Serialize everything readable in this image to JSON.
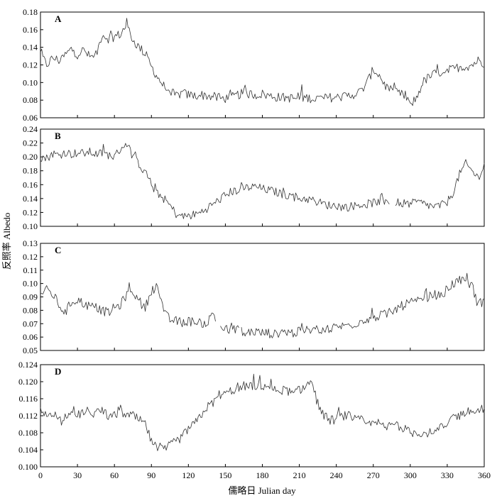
{
  "figure": {
    "ylabel": "反照率 Albedo",
    "xlabel": "儒略日 Julian day"
  },
  "chart_data": [
    {
      "type": "line",
      "label": "A",
      "xlim": [
        0,
        360
      ],
      "ylim": [
        0.06,
        0.18
      ],
      "yticks": [
        "0.06",
        "0.08",
        "0.10",
        "0.12",
        "0.14",
        "0.16",
        "0.18"
      ],
      "x_range": [
        0,
        360
      ],
      "keypoints": [
        [
          0,
          0.133
        ],
        [
          5,
          0.12
        ],
        [
          10,
          0.128
        ],
        [
          15,
          0.125
        ],
        [
          20,
          0.131
        ],
        [
          25,
          0.138
        ],
        [
          30,
          0.132
        ],
        [
          35,
          0.137
        ],
        [
          40,
          0.129
        ],
        [
          45,
          0.13
        ],
        [
          50,
          0.155
        ],
        [
          55,
          0.15
        ],
        [
          60,
          0.152
        ],
        [
          65,
          0.155
        ],
        [
          70,
          0.166
        ],
        [
          75,
          0.148
        ],
        [
          80,
          0.14
        ],
        [
          85,
          0.133
        ],
        [
          90,
          0.118
        ],
        [
          95,
          0.106
        ],
        [
          100,
          0.096
        ],
        [
          105,
          0.09
        ],
        [
          110,
          0.085
        ],
        [
          115,
          0.088
        ],
        [
          120,
          0.086
        ],
        [
          125,
          0.085
        ],
        [
          130,
          0.086
        ],
        [
          135,
          0.085
        ],
        [
          140,
          0.084
        ],
        [
          145,
          0.082
        ],
        [
          150,
          0.082
        ],
        [
          155,
          0.083
        ],
        [
          160,
          0.086
        ],
        [
          165,
          0.088
        ],
        [
          170,
          0.087
        ],
        [
          175,
          0.086
        ],
        [
          180,
          0.087
        ],
        [
          185,
          0.085
        ],
        [
          190,
          0.084
        ],
        [
          195,
          0.083
        ],
        [
          200,
          0.083
        ],
        [
          205,
          0.082
        ],
        [
          210,
          0.082
        ],
        [
          215,
          0.083
        ],
        [
          220,
          0.082
        ],
        [
          225,
          0.082
        ],
        [
          230,
          0.082
        ],
        [
          235,
          0.083
        ],
        [
          240,
          0.083
        ],
        [
          245,
          0.084
        ],
        [
          250,
          0.085
        ],
        [
          255,
          0.087
        ],
        [
          260,
          0.09
        ],
        [
          265,
          0.1
        ],
        [
          270,
          0.115
        ],
        [
          275,
          0.108
        ],
        [
          280,
          0.096
        ],
        [
          285,
          0.09
        ],
        [
          290,
          0.088
        ],
        [
          295,
          0.085
        ],
        [
          300,
          0.075
        ],
        [
          305,
          0.082
        ],
        [
          310,
          0.1
        ],
        [
          315,
          0.106
        ],
        [
          320,
          0.11
        ],
        [
          325,
          0.112
        ],
        [
          330,
          0.114
        ],
        [
          335,
          0.115
        ],
        [
          340,
          0.118
        ],
        [
          345,
          0.118
        ],
        [
          350,
          0.12
        ],
        [
          355,
          0.125
        ],
        [
          360,
          0.122
        ]
      ]
    },
    {
      "type": "line",
      "label": "B",
      "xlim": [
        0,
        360
      ],
      "ylim": [
        0.1,
        0.24
      ],
      "yticks": [
        "0.10",
        "0.12",
        "0.14",
        "0.16",
        "0.18",
        "0.20",
        "0.22",
        "0.24"
      ],
      "x_range": [
        0,
        360
      ],
      "keypoints": [
        [
          0,
          0.2
        ],
        [
          5,
          0.198
        ],
        [
          10,
          0.205
        ],
        [
          15,
          0.202
        ],
        [
          20,
          0.207
        ],
        [
          25,
          0.204
        ],
        [
          30,
          0.206
        ],
        [
          35,
          0.205
        ],
        [
          40,
          0.207
        ],
        [
          45,
          0.204
        ],
        [
          50,
          0.205
        ],
        [
          55,
          0.203
        ],
        [
          60,
          0.2
        ],
        [
          65,
          0.212
        ],
        [
          70,
          0.22
        ],
        [
          75,
          0.2
        ],
        [
          80,
          0.19
        ],
        [
          85,
          0.178
        ],
        [
          90,
          0.16
        ],
        [
          95,
          0.148
        ],
        [
          100,
          0.14
        ],
        [
          105,
          0.13
        ],
        [
          110,
          0.118
        ],
        [
          115,
          0.114
        ],
        [
          120,
          0.115
        ],
        [
          125,
          0.117
        ],
        [
          130,
          0.12
        ],
        [
          135,
          0.126
        ],
        [
          140,
          0.132
        ],
        [
          145,
          0.138
        ],
        [
          150,
          0.145
        ],
        [
          155,
          0.15
        ],
        [
          160,
          0.152
        ],
        [
          165,
          0.155
        ],
        [
          170,
          0.156
        ],
        [
          175,
          0.157
        ],
        [
          180,
          0.154
        ],
        [
          185,
          0.152
        ],
        [
          190,
          0.15
        ],
        [
          195,
          0.147
        ],
        [
          200,
          0.145
        ],
        [
          205,
          0.143
        ],
        [
          210,
          0.14
        ],
        [
          215,
          0.14
        ],
        [
          220,
          0.138
        ],
        [
          225,
          0.135
        ],
        [
          230,
          0.132
        ],
        [
          235,
          0.13
        ],
        [
          240,
          0.13
        ],
        [
          245,
          0.128
        ],
        [
          250,
          0.128
        ],
        [
          255,
          0.13
        ],
        [
          260,
          0.131
        ],
        [
          265,
          0.132
        ],
        [
          270,
          0.134
        ],
        [
          275,
          0.135
        ],
        [
          280,
          0.138
        ],
        [
          285,
          0.136
        ],
        [
          290,
          0.134
        ],
        [
          295,
          0.133
        ],
        [
          300,
          0.132
        ],
        [
          305,
          0.135
        ],
        [
          310,
          0.133
        ],
        [
          315,
          0.13
        ],
        [
          320,
          0.128
        ],
        [
          325,
          0.13
        ],
        [
          330,
          0.135
        ],
        [
          335,
          0.15
        ],
        [
          340,
          0.175
        ],
        [
          345,
          0.19
        ],
        [
          350,
          0.18
        ],
        [
          355,
          0.17
        ],
        [
          360,
          0.188
        ]
      ]
    },
    {
      "type": "line",
      "label": "C",
      "xlim": [
        0,
        360
      ],
      "ylim": [
        0.05,
        0.13
      ],
      "yticks": [
        "0.05",
        "0.06",
        "0.07",
        "0.08",
        "0.09",
        "0.10",
        "0.11",
        "0.12",
        "0.13"
      ],
      "x_range": [
        0,
        360
      ],
      "keypoints": [
        [
          0,
          0.093
        ],
        [
          5,
          0.095
        ],
        [
          10,
          0.092
        ],
        [
          15,
          0.084
        ],
        [
          20,
          0.078
        ],
        [
          25,
          0.086
        ],
        [
          30,
          0.088
        ],
        [
          35,
          0.085
        ],
        [
          40,
          0.083
        ],
        [
          45,
          0.082
        ],
        [
          50,
          0.08
        ],
        [
          55,
          0.078
        ],
        [
          60,
          0.082
        ],
        [
          65,
          0.084
        ],
        [
          70,
          0.092
        ],
        [
          75,
          0.095
        ],
        [
          80,
          0.085
        ],
        [
          85,
          0.082
        ],
        [
          90,
          0.095
        ],
        [
          95,
          0.098
        ],
        [
          100,
          0.078
        ],
        [
          105,
          0.073
        ],
        [
          110,
          0.072
        ],
        [
          115,
          0.071
        ],
        [
          120,
          0.072
        ],
        [
          125,
          0.071
        ],
        [
          130,
          0.071
        ],
        [
          135,
          0.07
        ],
        [
          140,
          0.078
        ],
        [
          145,
          0.068
        ],
        [
          150,
          0.066
        ],
        [
          155,
          0.064
        ],
        [
          160,
          0.068
        ],
        [
          165,
          0.062
        ],
        [
          170,
          0.064
        ],
        [
          175,
          0.064
        ],
        [
          180,
          0.063
        ],
        [
          185,
          0.063
        ],
        [
          190,
          0.062
        ],
        [
          195,
          0.064
        ],
        [
          200,
          0.064
        ],
        [
          205,
          0.063
        ],
        [
          210,
          0.064
        ],
        [
          215,
          0.065
        ],
        [
          220,
          0.065
        ],
        [
          225,
          0.066
        ],
        [
          230,
          0.066
        ],
        [
          235,
          0.066
        ],
        [
          240,
          0.068
        ],
        [
          245,
          0.068
        ],
        [
          250,
          0.069
        ],
        [
          255,
          0.07
        ],
        [
          260,
          0.072
        ],
        [
          265,
          0.074
        ],
        [
          270,
          0.074
        ],
        [
          275,
          0.076
        ],
        [
          280,
          0.077
        ],
        [
          285,
          0.078
        ],
        [
          290,
          0.082
        ],
        [
          295,
          0.084
        ],
        [
          300,
          0.086
        ],
        [
          305,
          0.086
        ],
        [
          310,
          0.088
        ],
        [
          315,
          0.09
        ],
        [
          320,
          0.092
        ],
        [
          325,
          0.09
        ],
        [
          330,
          0.096
        ],
        [
          335,
          0.1
        ],
        [
          340,
          0.102
        ],
        [
          345,
          0.101
        ],
        [
          350,
          0.099
        ],
        [
          355,
          0.084
        ],
        [
          360,
          0.088
        ]
      ]
    },
    {
      "type": "line",
      "label": "D",
      "xlim": [
        0,
        360
      ],
      "ylim": [
        0.1,
        0.124
      ],
      "yticks": [
        "0.100",
        "0.104",
        "0.108",
        "0.112",
        "0.116",
        "0.120",
        "0.124"
      ],
      "x_range": [
        0,
        360
      ],
      "keypoints": [
        [
          0,
          0.113
        ],
        [
          5,
          0.112
        ],
        [
          10,
          0.113
        ],
        [
          15,
          0.111
        ],
        [
          20,
          0.112
        ],
        [
          25,
          0.112
        ],
        [
          30,
          0.112
        ],
        [
          35,
          0.113
        ],
        [
          40,
          0.112
        ],
        [
          45,
          0.113
        ],
        [
          50,
          0.113
        ],
        [
          55,
          0.112
        ],
        [
          60,
          0.112
        ],
        [
          65,
          0.113
        ],
        [
          70,
          0.112
        ],
        [
          75,
          0.112
        ],
        [
          80,
          0.111
        ],
        [
          85,
          0.11
        ],
        [
          90,
          0.106
        ],
        [
          95,
          0.104
        ],
        [
          100,
          0.104
        ],
        [
          105,
          0.105
        ],
        [
          110,
          0.106
        ],
        [
          115,
          0.107
        ],
        [
          120,
          0.109
        ],
        [
          125,
          0.11
        ],
        [
          130,
          0.112
        ],
        [
          135,
          0.114
        ],
        [
          140,
          0.115
        ],
        [
          145,
          0.117
        ],
        [
          150,
          0.117
        ],
        [
          155,
          0.118
        ],
        [
          160,
          0.118
        ],
        [
          165,
          0.119
        ],
        [
          170,
          0.119
        ],
        [
          175,
          0.119
        ],
        [
          180,
          0.119
        ],
        [
          185,
          0.119
        ],
        [
          190,
          0.118
        ],
        [
          195,
          0.118
        ],
        [
          200,
          0.118
        ],
        [
          205,
          0.117
        ],
        [
          210,
          0.118
        ],
        [
          215,
          0.119
        ],
        [
          220,
          0.12
        ],
        [
          225,
          0.115
        ],
        [
          230,
          0.112
        ],
        [
          235,
          0.111
        ],
        [
          240,
          0.111
        ],
        [
          245,
          0.112
        ],
        [
          250,
          0.112
        ],
        [
          255,
          0.111
        ],
        [
          260,
          0.111
        ],
        [
          265,
          0.11
        ],
        [
          270,
          0.11
        ],
        [
          275,
          0.11
        ],
        [
          280,
          0.109
        ],
        [
          285,
          0.11
        ],
        [
          290,
          0.11
        ],
        [
          295,
          0.109
        ],
        [
          300,
          0.108
        ],
        [
          305,
          0.108
        ],
        [
          310,
          0.108
        ],
        [
          315,
          0.108
        ],
        [
          320,
          0.108
        ],
        [
          325,
          0.109
        ],
        [
          330,
          0.11
        ],
        [
          335,
          0.112
        ],
        [
          340,
          0.112
        ],
        [
          345,
          0.113
        ],
        [
          350,
          0.113
        ],
        [
          355,
          0.113
        ],
        [
          360,
          0.114
        ]
      ]
    }
  ],
  "xticks": [
    "0",
    "30",
    "60",
    "90",
    "120",
    "150",
    "180",
    "210",
    "240",
    "270",
    "300",
    "330",
    "360"
  ],
  "gaps": {
    "B": [
      [
        283,
        288
      ]
    ],
    "C": [
      [
        142,
        146
      ],
      [
        161,
        163
      ]
    ]
  }
}
